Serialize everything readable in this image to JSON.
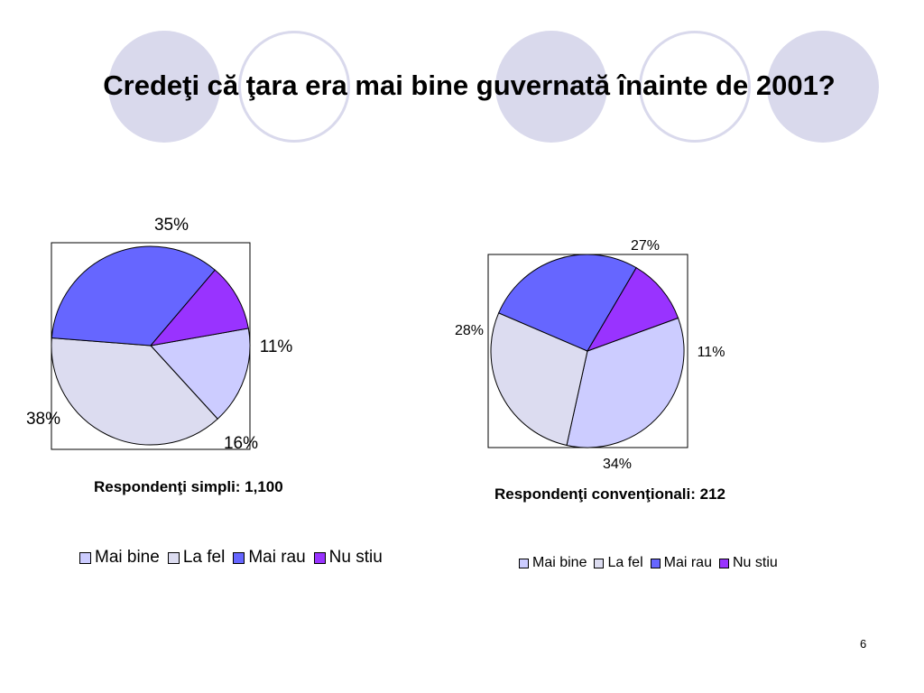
{
  "title": "Credeţi că ţara era mai bine guvernată înainte de 2001?",
  "page_number": "6",
  "chart_data": [
    {
      "type": "pie",
      "caption": "Respondenţi simpli: 1,100",
      "categories": [
        "Mai bine",
        "La fel",
        "Mai rau",
        "Nu stiu"
      ],
      "values": [
        16,
        38,
        35,
        11
      ],
      "labels": [
        "16%",
        "38%",
        "35%",
        "11%"
      ],
      "colors": [
        "#ccccff",
        "#dcdcf0",
        "#6666ff",
        "#9933ff"
      ],
      "legend_position": "bottom"
    },
    {
      "type": "pie",
      "caption": "Respondenţi convenţionali: 212",
      "categories": [
        "Mai bine",
        "La fel",
        "Mai rau",
        "Nu stiu"
      ],
      "values": [
        34,
        28,
        27,
        11
      ],
      "labels": [
        "34%",
        "28%",
        "27%",
        "11%"
      ],
      "colors": [
        "#ccccff",
        "#dcdcf0",
        "#6666ff",
        "#9933ff"
      ],
      "legend_position": "bottom"
    }
  ]
}
